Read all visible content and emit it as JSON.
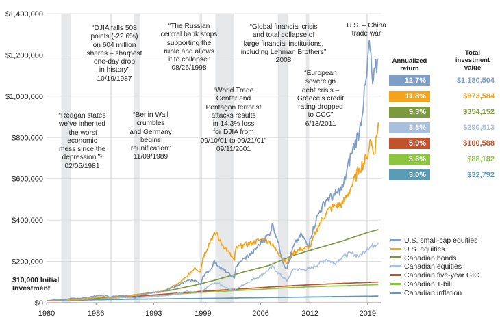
{
  "chart_data": {
    "type": "line",
    "y_axis": {
      "ylim": [
        0,
        1400000
      ],
      "ticks": [
        "$1,400,000",
        "$1,200,000",
        "$1,000,000",
        "$800,000",
        "$600,000",
        "$400,000",
        "$200,000",
        "$0"
      ],
      "tick_values": [
        1400000,
        1200000,
        1000000,
        800000,
        600000,
        400000,
        200000,
        0
      ]
    },
    "x_axis": {
      "xlim": [
        1980,
        2020.6
      ],
      "ticks": [
        "1980",
        "1986",
        "1993",
        "1999",
        "2006",
        "2012",
        "2019"
      ],
      "tick_values": [
        1980,
        1986,
        1993,
        1999,
        2006,
        2012,
        2019
      ]
    },
    "shaded_periods": [
      [
        1981.8,
        1982.9
      ],
      [
        1987.7,
        1987.95
      ],
      [
        1990.6,
        1991.4
      ],
      [
        1998.6,
        1998.9
      ],
      [
        2000.5,
        2002.8
      ],
      [
        2008.1,
        2009.3
      ],
      [
        2011.5,
        2011.9
      ],
      [
        2018.8,
        2019.1
      ]
    ],
    "initial_investment_label": "$10,000 Initial\nInvestment",
    "annotations": [
      {
        "text": "“Reagan states\nwe’ve inherited\n‘the worst\neconomic\nmess since the\ndepression’”¹\n02/05/1981"
      },
      {
        "text": "“DJIA falls 508\npoints (-22.6%)\non 604 million\nshares – sharpest\none-day drop\nin history”\n10/19/1987"
      },
      {
        "text": "“Berlin Wall\ncrumbles\nand Germany\nbegins\nreunification”\n11/09/1989"
      },
      {
        "text": "“The Russian\ncentral bank stops\nsupporting the\nruble and allows\nit to collapse”\n08/26/1998"
      },
      {
        "text": "“World Trade\nCenter and\nPentagon terrorist\nattacks results\nin 14.3% loss\nfor DJIA from\n09/10/01 to 09/21/01”\n09/11/2001"
      },
      {
        "text": "“Global financial crisis\nand total collapse of\nlarge financial institutions,\nincluding Lehman Brothers”\n2008"
      },
      {
        "text": "“European\nsovereign\ndebt crisis –\nGreece’s credit\nrating dropped\nto CCC”\n6/13/2011"
      },
      {
        "text": "U.S. – China\ntrade war"
      }
    ],
    "returns_header": {
      "annualized": "Annualized\nreturn",
      "total": "Total\ninvestment\nvalue"
    },
    "series": [
      {
        "name": "U.S. small-cap equities",
        "color": "#7f9ec7",
        "annualized_return": "12.7%",
        "total_value": "$1,180,504",
        "final": 1180504,
        "x": [
          1980,
          1981,
          1982,
          1983,
          1984,
          1985,
          1986,
          1987,
          1987.8,
          1988,
          1989,
          1990,
          1990.8,
          1991,
          1992,
          1993,
          1994,
          1995,
          1996,
          1997,
          1998,
          1998.7,
          1999,
          2000,
          2000.3,
          2001,
          2002,
          2002.8,
          2003,
          2004,
          2005,
          2006,
          2007,
          2007.5,
          2008,
          2008.8,
          2009.2,
          2010,
          2011,
          2011.8,
          2012,
          2013,
          2014,
          2015,
          2016,
          2017,
          2018,
          2018.9,
          2019.2,
          2019.6,
          2020.3
        ],
        "values": [
          10000,
          14000,
          12000,
          22000,
          21000,
          27000,
          33000,
          38000,
          26000,
          31000,
          34000,
          31000,
          24000,
          36000,
          42000,
          52000,
          51000,
          68000,
          85000,
          105000,
          110000,
          88000,
          128000,
          165000,
          200000,
          175000,
          145000,
          118000,
          175000,
          215000,
          240000,
          290000,
          330000,
          380000,
          310000,
          185000,
          165000,
          275000,
          330000,
          270000,
          310000,
          430000,
          500000,
          520000,
          560000,
          720000,
          830000,
          1100000,
          1270000,
          1060000,
          1180504
        ]
      },
      {
        "name": "U.S. equities",
        "color": "#f5a31a",
        "annualized_return": "11.8%",
        "total_value": "$873,584",
        "final": 873584,
        "x": [
          1980,
          1981,
          1982,
          1983,
          1984,
          1985,
          1986,
          1987,
          1987.8,
          1988,
          1989,
          1990,
          1991,
          1992,
          1993,
          1994,
          1995,
          1996,
          1997,
          1998,
          1998.7,
          1999,
          2000,
          2000.7,
          2001,
          2002,
          2002.8,
          2003,
          2004,
          2005,
          2006,
          2007,
          2008,
          2009.2,
          2010,
          2011,
          2012,
          2013,
          2014,
          2015,
          2016,
          2017,
          2018,
          2018.9,
          2019.3,
          2019.8,
          2020.3
        ],
        "values": [
          10000,
          11000,
          12500,
          15500,
          16500,
          21000,
          25000,
          30000,
          23000,
          26000,
          34000,
          34000,
          41000,
          45000,
          50000,
          55000,
          72000,
          92000,
          125000,
          170000,
          150000,
          220000,
          310000,
          340000,
          300000,
          250000,
          205000,
          265000,
          280000,
          290000,
          305000,
          300000,
          250000,
          190000,
          245000,
          260000,
          270000,
          370000,
          440000,
          470000,
          480000,
          560000,
          650000,
          700000,
          790000,
          720000,
          873584
        ]
      },
      {
        "name": "Canadian bonds",
        "color": "#7a9a3c",
        "annualized_return": "9.3%",
        "total_value": "$354,152",
        "final": 354152,
        "x": [
          1980,
          1983,
          1986,
          1989,
          1992,
          1995,
          1998,
          2001,
          2004,
          2007,
          2010,
          2013,
          2016,
          2019,
          2020.3
        ],
        "values": [
          10000,
          14500,
          22000,
          30000,
          45000,
          60000,
          85000,
          115000,
          150000,
          180000,
          230000,
          265000,
          300000,
          340000,
          354152
        ]
      },
      {
        "name": "Canadian equities",
        "color": "#a9c0dc",
        "annualized_return": "8.8%",
        "total_value": "$290,813",
        "final": 290813,
        "x": [
          1980,
          1981,
          1982,
          1983,
          1985,
          1987,
          1987.9,
          1989,
          1990.8,
          1993,
          1995,
          1997,
          1998.7,
          2000,
          2000.8,
          2002,
          2002.8,
          2004,
          2006,
          2007.5,
          2008,
          2009.2,
          2010,
          2011,
          2012,
          2014,
          2015,
          2016,
          2017,
          2018,
          2019,
          2020.3
        ],
        "values": [
          10000,
          10500,
          9000,
          14000,
          18000,
          23000,
          19000,
          26000,
          23000,
          32000,
          37000,
          55000,
          48000,
          90000,
          95000,
          70000,
          60000,
          90000,
          130000,
          175000,
          150000,
          105000,
          165000,
          160000,
          165000,
          210000,
          190000,
          225000,
          240000,
          225000,
          265000,
          290813
        ]
      },
      {
        "name": "Canadian five-year GIC",
        "color": "#c0532b",
        "annualized_return": "5.9%",
        "total_value": "$100,588",
        "final": 100588,
        "x": [
          1980,
          1983,
          1986,
          1989,
          1992,
          1995,
          1998,
          2001,
          2004,
          2007,
          2010,
          2013,
          2016,
          2020.3
        ],
        "values": [
          10000,
          14500,
          20000,
          26500,
          35000,
          44000,
          53000,
          61000,
          68000,
          76000,
          83000,
          89000,
          94000,
          100588
        ]
      },
      {
        "name": "Canadian T-bill",
        "color": "#8cc63e",
        "annualized_return": "5.6%",
        "total_value": "$88,182",
        "final": 88182,
        "x": [
          1980,
          1982,
          1984,
          1986,
          1988,
          1990,
          1992,
          1994,
          1996,
          1998,
          2000,
          2002,
          2004,
          2006,
          2008,
          2010,
          2012,
          2014,
          2016,
          2018,
          2020.3
        ],
        "values": [
          10000,
          13500,
          17000,
          20500,
          24000,
          29000,
          34000,
          38000,
          43000,
          48000,
          53000,
          57000,
          61000,
          65000,
          70000,
          74000,
          77000,
          80000,
          82000,
          85000,
          88182
        ]
      },
      {
        "name": "Canadian inflation",
        "color": "#5a9bb5",
        "annualized_return": "3.0%",
        "total_value": "$32,792",
        "final": 32792,
        "x": [
          1980,
          1985,
          1990,
          1995,
          2000,
          2005,
          2010,
          2015,
          2020.3
        ],
        "values": [
          10000,
          13500,
          17000,
          19500,
          21500,
          24500,
          27000,
          30000,
          32792
        ]
      }
    ]
  }
}
